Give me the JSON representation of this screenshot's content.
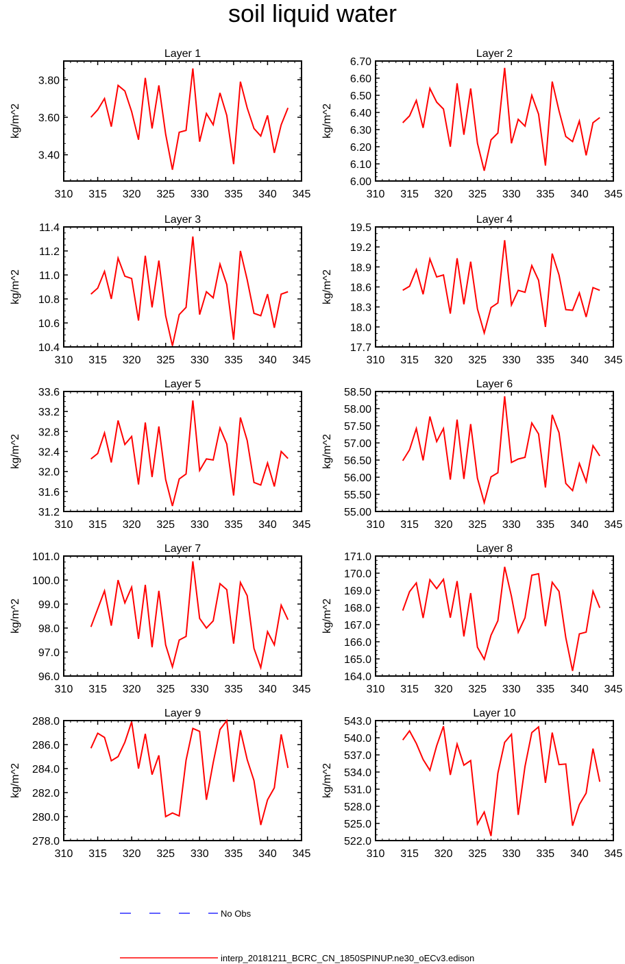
{
  "title": "soil liquid water",
  "x": [
    314,
    315,
    316,
    317,
    318,
    319,
    320,
    321,
    322,
    323,
    324,
    325,
    326,
    327,
    328,
    329,
    330,
    331,
    332,
    333,
    334,
    335,
    336,
    337,
    338,
    339,
    340,
    341,
    342,
    343
  ],
  "xlim": [
    310,
    345
  ],
  "xticks": [
    310,
    315,
    320,
    325,
    330,
    335,
    340,
    345
  ],
  "colors": {
    "model": "#ff0000",
    "obs": "#0000ff"
  },
  "legend": {
    "obs_label": "No Obs",
    "model_label": "interp_20181211_BCRC_CN_1850SPINUP.ne30_oECv3.edison"
  },
  "chart_data": [
    {
      "type": "line",
      "title": "Layer 1",
      "ylabel": "kg/m^2",
      "ylim": [
        3.26,
        3.9
      ],
      "yticks": [
        "3.40",
        "3.60",
        "3.80"
      ],
      "series": [
        {
          "values": [
            3.6,
            3.64,
            3.7,
            3.55,
            3.77,
            3.74,
            3.63,
            3.48,
            3.81,
            3.54,
            3.77,
            3.51,
            3.32,
            3.52,
            3.53,
            3.86,
            3.47,
            3.62,
            3.56,
            3.73,
            3.61,
            3.35,
            3.79,
            3.65,
            3.54,
            3.5,
            3.61,
            3.41,
            3.56,
            3.65
          ]
        }
      ]
    },
    {
      "type": "line",
      "title": "Layer 2",
      "ylabel": "kg/m^2",
      "ylim": [
        6.0,
        6.7
      ],
      "yticks": [
        "6.00",
        "6.10",
        "6.20",
        "6.30",
        "6.40",
        "6.50",
        "6.60",
        "6.70"
      ],
      "series": [
        {
          "values": [
            6.34,
            6.38,
            6.47,
            6.31,
            6.54,
            6.46,
            6.42,
            6.2,
            6.57,
            6.27,
            6.54,
            6.22,
            6.06,
            6.24,
            6.28,
            6.66,
            6.22,
            6.36,
            6.32,
            6.5,
            6.39,
            6.09,
            6.58,
            6.41,
            6.26,
            6.23,
            6.35,
            6.15,
            6.34,
            6.37
          ]
        }
      ]
    },
    {
      "type": "line",
      "title": "Layer 3",
      "ylabel": "kg/m^2",
      "ylim": [
        10.4,
        11.4
      ],
      "yticks": [
        "10.4",
        "10.6",
        "10.8",
        "11.0",
        "11.2",
        "11.4"
      ],
      "series": [
        {
          "values": [
            10.84,
            10.89,
            11.03,
            10.8,
            11.14,
            10.99,
            10.97,
            10.62,
            11.16,
            10.73,
            11.12,
            10.66,
            10.41,
            10.67,
            10.73,
            11.32,
            10.67,
            10.86,
            10.81,
            11.09,
            10.92,
            10.46,
            11.2,
            10.96,
            10.68,
            10.66,
            10.84,
            10.56,
            10.84,
            10.86
          ]
        }
      ]
    },
    {
      "type": "line",
      "title": "Layer 4",
      "ylabel": "kg/m^2",
      "ylim": [
        17.7,
        19.5
      ],
      "yticks": [
        "17.7",
        "18.0",
        "18.3",
        "18.6",
        "18.9",
        "19.2",
        "19.5"
      ],
      "series": [
        {
          "values": [
            18.55,
            18.61,
            18.86,
            18.49,
            19.02,
            18.75,
            18.78,
            18.2,
            19.03,
            18.34,
            18.98,
            18.27,
            17.91,
            18.29,
            18.36,
            19.3,
            18.33,
            18.55,
            18.52,
            18.92,
            18.7,
            18.0,
            19.1,
            18.78,
            18.26,
            18.25,
            18.51,
            18.15,
            18.59,
            18.55
          ]
        }
      ]
    },
    {
      "type": "line",
      "title": "Layer 5",
      "ylabel": "kg/m^2",
      "ylim": [
        31.2,
        33.6
      ],
      "yticks": [
        "31.2",
        "31.6",
        "32.0",
        "32.4",
        "32.8",
        "33.2",
        "33.6"
      ],
      "series": [
        {
          "values": [
            32.25,
            32.36,
            32.77,
            32.18,
            33.02,
            32.54,
            32.7,
            31.74,
            32.98,
            31.89,
            32.9,
            31.84,
            31.31,
            31.85,
            31.95,
            33.42,
            32.02,
            32.25,
            32.23,
            32.87,
            32.55,
            31.52,
            33.08,
            32.62,
            31.78,
            31.73,
            32.17,
            31.7,
            32.4,
            32.26
          ]
        }
      ]
    },
    {
      "type": "line",
      "title": "Layer 6",
      "ylabel": "kg/m^2",
      "ylim": [
        55.0,
        58.5
      ],
      "yticks": [
        "55.00",
        "55.50",
        "56.00",
        "56.50",
        "57.00",
        "57.50",
        "58.00",
        "58.50"
      ],
      "series": [
        {
          "values": [
            56.48,
            56.8,
            57.42,
            56.49,
            57.77,
            57.04,
            57.42,
            55.93,
            57.68,
            55.95,
            57.55,
            55.97,
            55.26,
            56.01,
            56.13,
            58.36,
            56.43,
            56.53,
            56.58,
            57.58,
            57.26,
            55.7,
            57.82,
            57.3,
            55.82,
            55.61,
            56.4,
            55.87,
            56.92,
            56.62
          ]
        }
      ]
    },
    {
      "type": "line",
      "title": "Layer 7",
      "ylabel": "kg/m^2",
      "ylim": [
        96.0,
        101.0
      ],
      "yticks": [
        "96.0",
        "97.0",
        "98.0",
        "99.0",
        "100.0",
        "101.0"
      ],
      "series": [
        {
          "values": [
            98.05,
            98.8,
            99.55,
            98.1,
            100.0,
            99.05,
            99.7,
            97.55,
            99.8,
            97.2,
            99.55,
            97.3,
            96.38,
            97.5,
            97.65,
            100.78,
            98.4,
            98.0,
            98.3,
            99.85,
            99.6,
            97.35,
            99.9,
            99.35,
            97.15,
            96.35,
            97.85,
            97.3,
            98.95,
            98.35
          ]
        }
      ]
    },
    {
      "type": "line",
      "title": "Layer 8",
      "ylabel": "kg/m^2",
      "ylim": [
        164.0,
        171.0
      ],
      "yticks": [
        "164.0",
        "165.0",
        "166.0",
        "167.0",
        "168.0",
        "169.0",
        "170.0",
        "171.0"
      ],
      "series": [
        {
          "values": [
            167.82,
            168.92,
            169.43,
            167.39,
            169.62,
            169.1,
            169.64,
            167.4,
            169.54,
            166.31,
            168.84,
            165.68,
            164.98,
            166.38,
            167.23,
            170.37,
            168.65,
            166.55,
            167.4,
            169.88,
            169.97,
            166.91,
            169.47,
            168.94,
            166.24,
            164.3,
            166.46,
            166.56,
            168.95,
            167.98
          ]
        }
      ]
    },
    {
      "type": "line",
      "title": "Layer 9",
      "ylabel": "kg/m^2",
      "ylim": [
        278.0,
        288.0
      ],
      "yticks": [
        "278.0",
        "280.0",
        "282.0",
        "284.0",
        "286.0",
        "288.0"
      ],
      "series": [
        {
          "values": [
            285.7,
            286.95,
            286.6,
            284.65,
            285.0,
            286.2,
            287.9,
            284.0,
            286.9,
            283.5,
            285.1,
            280.0,
            280.3,
            280.05,
            284.7,
            287.35,
            287.1,
            281.4,
            284.5,
            287.25,
            288.0,
            282.9,
            287.2,
            284.75,
            283.0,
            279.3,
            281.4,
            282.4,
            286.85,
            284.05
          ]
        }
      ]
    },
    {
      "type": "line",
      "title": "Layer 10",
      "ylabel": "kg/m^2",
      "ylim": [
        522.0,
        543.0
      ],
      "yticks": [
        "522.0",
        "525.0",
        "528.0",
        "531.0",
        "534.0",
        "537.0",
        "540.0",
        "543.0"
      ],
      "series": [
        {
          "values": [
            539.6,
            541.2,
            539.0,
            536.2,
            534.3,
            538.6,
            542.0,
            533.5,
            538.9,
            535.2,
            536.0,
            524.9,
            527.0,
            522.8,
            533.8,
            539.2,
            540.6,
            526.5,
            535.0,
            540.9,
            541.9,
            532.1,
            540.9,
            535.3,
            535.4,
            524.6,
            528.3,
            530.3,
            538.1,
            532.3
          ]
        }
      ]
    }
  ]
}
